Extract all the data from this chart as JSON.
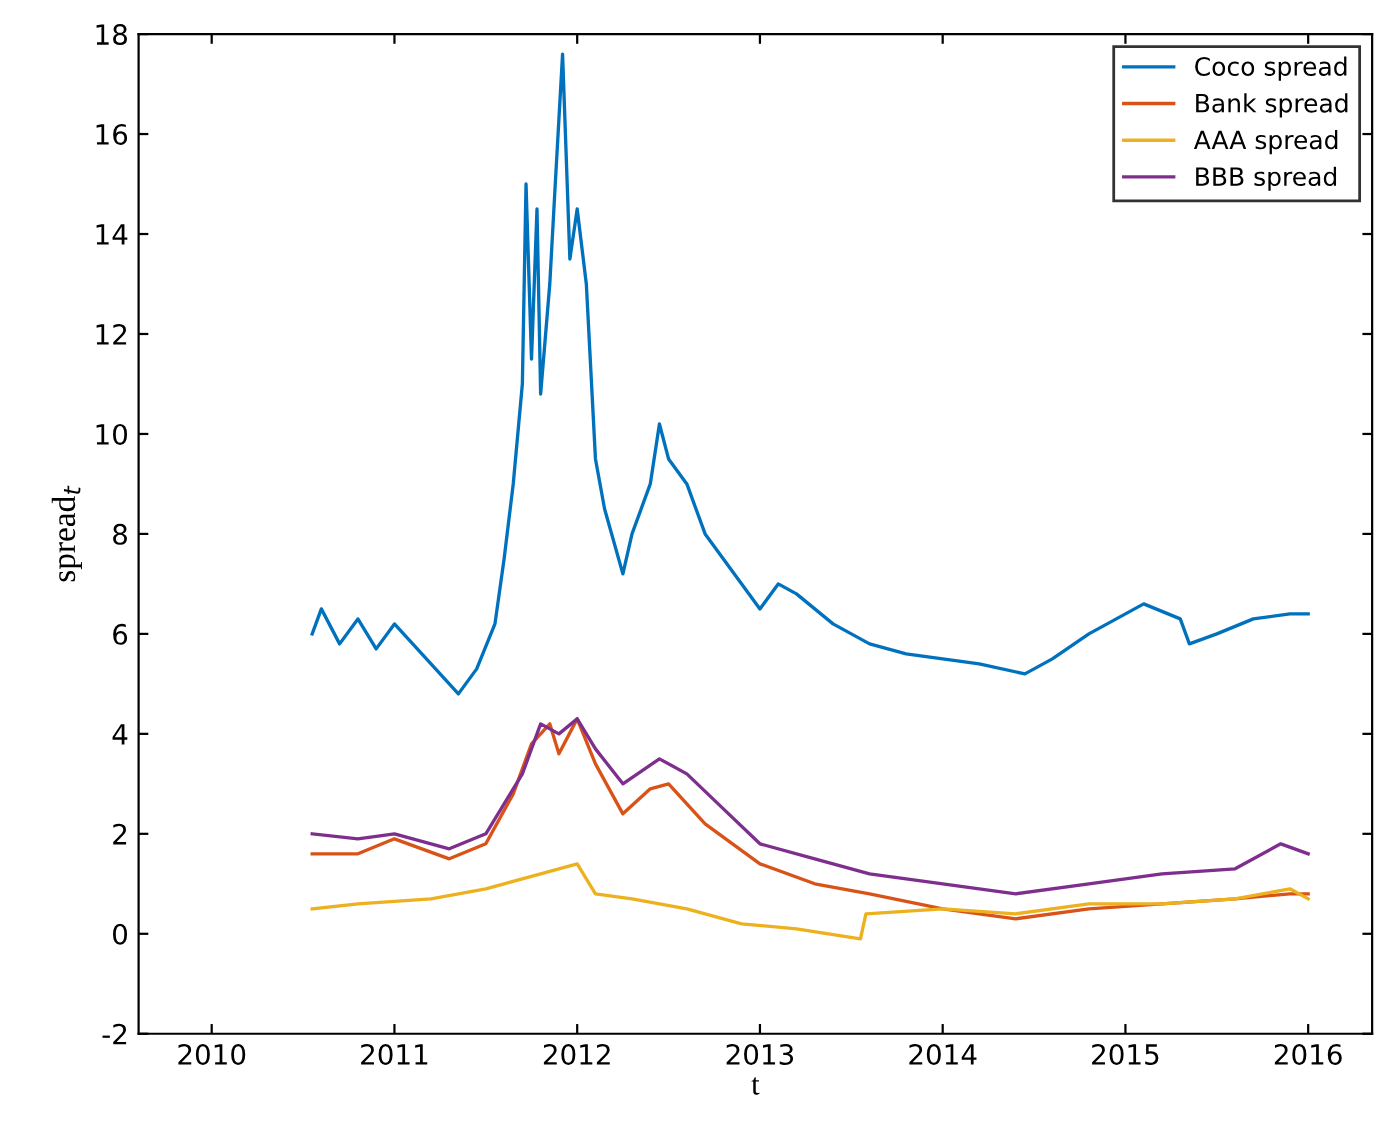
{
  "chart_data": {
    "type": "line",
    "xlabel": "t",
    "ylabel": "spread$_{t}$",
    "xlim": [
      2009.6,
      2016.35
    ],
    "xticks": [
      2010,
      2011,
      2012,
      2013,
      2014,
      2015,
      2016
    ],
    "ylim": [
      -2,
      18
    ],
    "yticks": [
      -2,
      0,
      2,
      4,
      6,
      8,
      10,
      12,
      14,
      16,
      18
    ],
    "grid": false,
    "legend": "top right",
    "line_style": "solid",
    "marker": "none",
    "series": [
      {
        "name": "Coco spread",
        "color": "#0072bd",
        "x": [
          2010.55,
          2010.6,
          2010.7,
          2010.8,
          2010.9,
          2011.0,
          2011.1,
          2011.2,
          2011.3,
          2011.35,
          2011.45,
          2011.55,
          2011.6,
          2011.65,
          2011.7,
          2011.72,
          2011.75,
          2011.78,
          2011.8,
          2011.85,
          2011.88,
          2011.92,
          2011.96,
          2012.0,
          2012.05,
          2012.1,
          2012.15,
          2012.25,
          2012.3,
          2012.4,
          2012.45,
          2012.5,
          2012.6,
          2012.7,
          2012.8,
          2012.9,
          2013.0,
          2013.1,
          2013.2,
          2013.4,
          2013.6,
          2013.8,
          2014.0,
          2014.2,
          2014.45,
          2014.6,
          2014.8,
          2015.0,
          2015.1,
          2015.3,
          2015.35,
          2015.5,
          2015.7,
          2015.9,
          2016.0
        ],
        "values": [
          6.0,
          6.5,
          5.8,
          6.3,
          5.7,
          6.2,
          5.8,
          5.4,
          5.0,
          4.8,
          5.3,
          6.2,
          7.5,
          9.0,
          11.0,
          15.0,
          11.5,
          14.5,
          10.8,
          13.0,
          15.0,
          17.6,
          13.5,
          14.5,
          13.0,
          9.5,
          8.5,
          7.2,
          8.0,
          9.0,
          10.2,
          9.5,
          9.0,
          8.0,
          7.5,
          7.0,
          6.5,
          7.0,
          6.8,
          6.2,
          5.8,
          5.6,
          5.5,
          5.4,
          5.2,
          5.5,
          6.0,
          6.4,
          6.6,
          6.3,
          5.8,
          6.0,
          6.3,
          6.4,
          6.4
        ]
      },
      {
        "name": "Bank spread",
        "color": "#d95319",
        "x": [
          2010.55,
          2010.8,
          2011.0,
          2011.3,
          2011.5,
          2011.65,
          2011.75,
          2011.85,
          2011.9,
          2012.0,
          2012.1,
          2012.25,
          2012.4,
          2012.5,
          2012.7,
          2013.0,
          2013.3,
          2013.6,
          2014.0,
          2014.4,
          2014.8,
          2015.2,
          2015.6,
          2015.9,
          2016.0
        ],
        "values": [
          1.6,
          1.6,
          1.9,
          1.5,
          1.8,
          2.8,
          3.8,
          4.2,
          3.6,
          4.3,
          3.4,
          2.4,
          2.9,
          3.0,
          2.2,
          1.4,
          1.0,
          0.8,
          0.5,
          0.3,
          0.5,
          0.6,
          0.7,
          0.8,
          0.8
        ]
      },
      {
        "name": "AAA spread",
        "color": "#edb120",
        "x": [
          2010.55,
          2010.8,
          2011.2,
          2011.5,
          2011.8,
          2012.0,
          2012.1,
          2012.3,
          2012.6,
          2012.9,
          2013.2,
          2013.55,
          2013.58,
          2014.0,
          2014.4,
          2014.8,
          2015.2,
          2015.6,
          2015.9,
          2016.0
        ],
        "values": [
          0.5,
          0.6,
          0.7,
          0.9,
          1.2,
          1.4,
          0.8,
          0.7,
          0.5,
          0.2,
          0.1,
          -0.1,
          0.4,
          0.5,
          0.4,
          0.6,
          0.6,
          0.7,
          0.9,
          0.7
        ]
      },
      {
        "name": "BBB spread",
        "color": "#7e2f8e",
        "x": [
          2010.55,
          2010.8,
          2011.0,
          2011.3,
          2011.5,
          2011.7,
          2011.8,
          2011.9,
          2012.0,
          2012.1,
          2012.25,
          2012.45,
          2012.6,
          2012.8,
          2013.0,
          2013.3,
          2013.6,
          2014.0,
          2014.4,
          2014.8,
          2015.2,
          2015.6,
          2015.85,
          2016.0
        ],
        "values": [
          2.0,
          1.9,
          2.0,
          1.7,
          2.0,
          3.2,
          4.2,
          4.0,
          4.3,
          3.7,
          3.0,
          3.5,
          3.2,
          2.5,
          1.8,
          1.5,
          1.2,
          1.0,
          0.8,
          1.0,
          1.2,
          1.3,
          1.8,
          1.6
        ]
      }
    ]
  }
}
